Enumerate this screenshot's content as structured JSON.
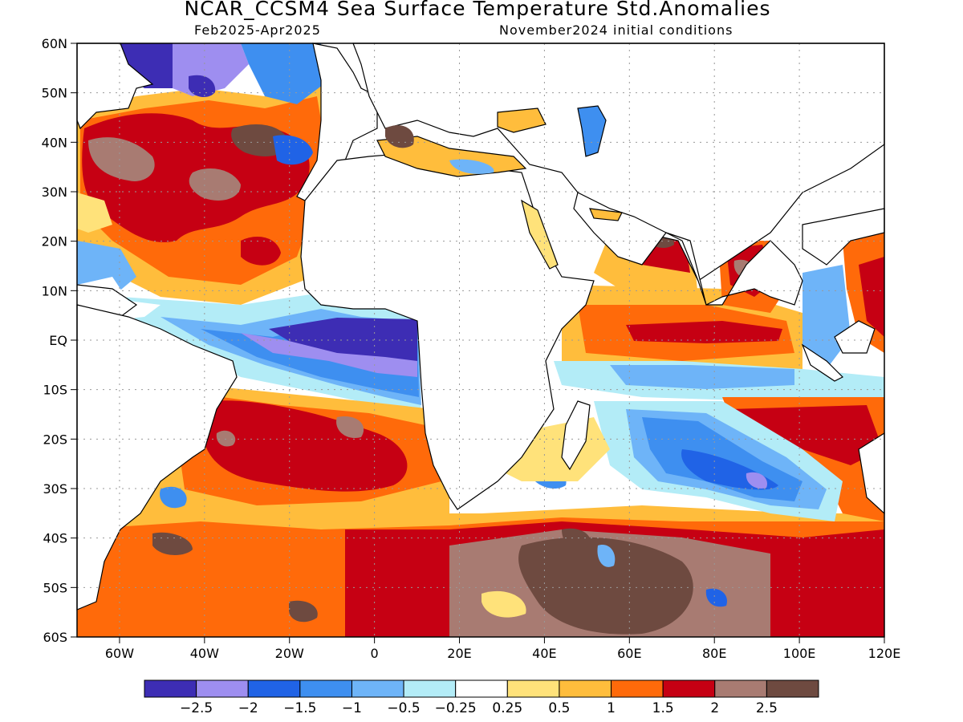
{
  "title": "NCAR_CCSM4 Sea Surface Temperature Std.Anomalies",
  "subtitle_left": "Feb2025-Apr2025",
  "subtitle_right": "November2024 initial conditions",
  "map": {
    "lat_labels": [
      "60N",
      "50N",
      "40N",
      "30N",
      "20N",
      "10N",
      "EQ",
      "10S",
      "20S",
      "30S",
      "40S",
      "50S",
      "60S"
    ],
    "lon_labels": [
      "60W",
      "40W",
      "20W",
      "0",
      "20E",
      "40E",
      "60E",
      "80E",
      "100E",
      "120E"
    ],
    "lon_range": [
      -70,
      120
    ],
    "lat_range": [
      -60,
      60
    ],
    "land_color": "#ffffff",
    "grid": "dotted"
  },
  "colorbar": {
    "labels": [
      "-2.5",
      "-2",
      "-1.5",
      "-1",
      "-0.5",
      "-0.25",
      "0.25",
      "0.5",
      "1",
      "1.5",
      "2",
      "2.5"
    ],
    "colors": [
      "#3d2db4",
      "#9e8ef0",
      "#2063e6",
      "#3e8ff0",
      "#6eb4f8",
      "#b3ecf7",
      "#ffffff",
      "#ffe27a",
      "#ffbd3c",
      "#ff6a0a",
      "#c60013",
      "#a87b72",
      "#6e4a40"
    ]
  }
}
